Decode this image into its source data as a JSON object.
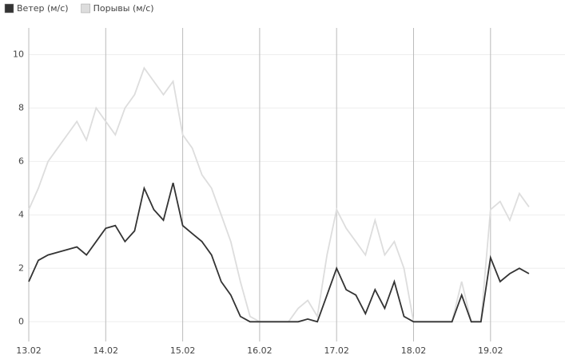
{
  "chart_data": {
    "type": "line",
    "categories": [
      "13.02",
      null,
      null,
      null,
      null,
      null,
      null,
      null,
      "14.02",
      null,
      null,
      null,
      null,
      null,
      null,
      null,
      "15.02",
      null,
      null,
      null,
      null,
      null,
      null,
      null,
      "16.02",
      null,
      null,
      null,
      null,
      null,
      null,
      null,
      "17.02",
      null,
      null,
      null,
      null,
      null,
      null,
      null,
      "18.02",
      null,
      null,
      null,
      null,
      null,
      null,
      null,
      "19.02",
      null,
      null,
      null,
      null
    ],
    "series": [
      {
        "name": "Ветер (м/с)",
        "color": "#333333",
        "values": [
          1.5,
          2.3,
          2.5,
          2.6,
          2.7,
          2.8,
          2.5,
          3.0,
          3.5,
          3.6,
          3.0,
          3.4,
          5.0,
          4.2,
          3.8,
          5.2,
          3.6,
          3.3,
          3.0,
          2.5,
          1.5,
          1.0,
          0.2,
          0,
          0,
          0,
          0,
          0,
          0,
          0.1,
          0,
          1.0,
          2.0,
          1.2,
          1.0,
          0.3,
          1.2,
          0.5,
          1.5,
          0.2,
          0,
          0,
          0,
          0,
          0,
          1.0,
          0,
          0,
          2.4,
          1.5,
          1.8,
          2.0,
          1.8
        ]
      },
      {
        "name": "Порывы (м/с)",
        "color": "#dddddd",
        "values": [
          4.2,
          5.0,
          6.0,
          6.5,
          7.0,
          7.5,
          6.8,
          8.0,
          7.5,
          7.0,
          8.0,
          8.5,
          9.5,
          9.0,
          8.5,
          9.0,
          7.0,
          6.5,
          5.5,
          5.0,
          4.0,
          3.0,
          1.5,
          0.2,
          0,
          0,
          0,
          0,
          0.5,
          0.8,
          0.2,
          2.5,
          4.2,
          3.5,
          3.0,
          2.5,
          3.8,
          2.5,
          3.0,
          2.0,
          0,
          0,
          0,
          0,
          0,
          1.5,
          0,
          0,
          4.2,
          4.5,
          3.8,
          4.8,
          4.3
        ]
      }
    ],
    "ylim": [
      -0.5,
      11
    ],
    "yticks": [
      0,
      2,
      4,
      6,
      8,
      10
    ],
    "grid": true,
    "legend": "top-left"
  }
}
